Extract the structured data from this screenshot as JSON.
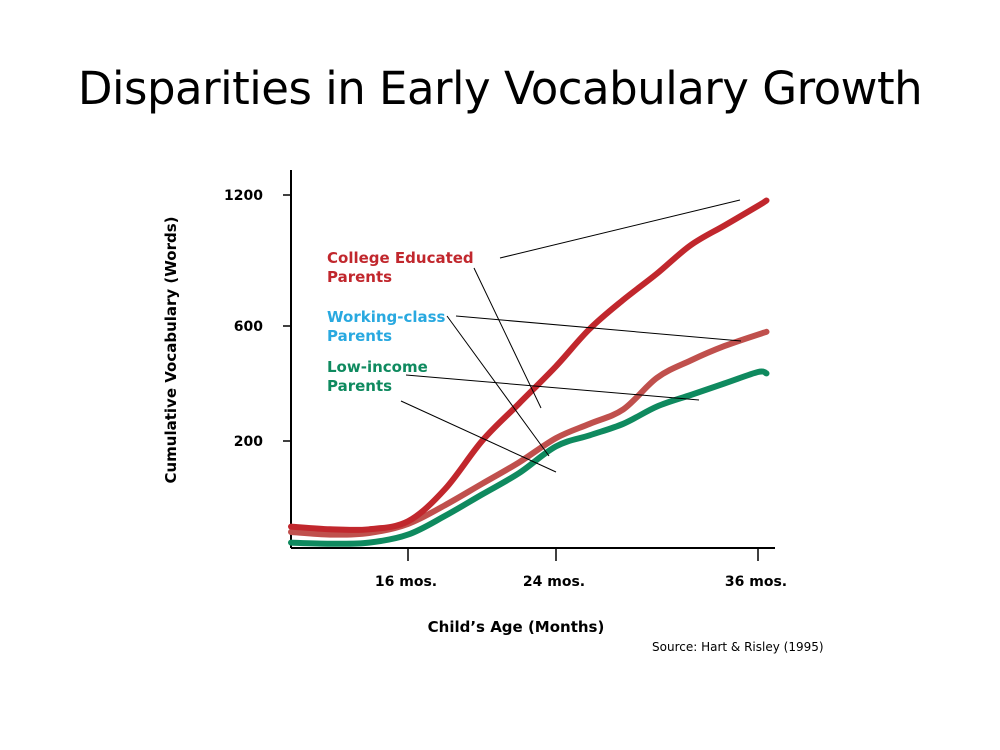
{
  "slide_title": "Disparities in Early Vocabulary Growth",
  "source_note": "Source: Hart & Risley (1995)",
  "chart_data": {
    "type": "line",
    "title": "Disparities in Early Vocabulary Growth",
    "xlabel": "Child’s Age (Months)",
    "ylabel": "Cumulative Vocabulary (Words)",
    "x_ticks": [
      {
        "value": 16,
        "label": "16 mos."
      },
      {
        "value": 24,
        "label": "24 mos."
      },
      {
        "value": 36,
        "label": "36 mos."
      }
    ],
    "y_ticks": [
      {
        "value": 200,
        "label": "200"
      },
      {
        "value": 600,
        "label": "600"
      },
      {
        "value": 1200,
        "label": "1200"
      }
    ],
    "xlim": [
      10,
      37
    ],
    "ylim": [
      0,
      1250
    ],
    "grid": false,
    "series": [
      {
        "name": "College Educated Parents",
        "label_lines": [
          "College Educated",
          "Parents"
        ],
        "color": "#c1272d",
        "points": [
          [
            10,
            40
          ],
          [
            12,
            35
          ],
          [
            14,
            35
          ],
          [
            16,
            50
          ],
          [
            18,
            110
          ],
          [
            20,
            200
          ],
          [
            22,
            330
          ],
          [
            24,
            460
          ],
          [
            26,
            590
          ],
          [
            28,
            720
          ],
          [
            30,
            840
          ],
          [
            32,
            970
          ],
          [
            34,
            1060
          ],
          [
            36,
            1150
          ],
          [
            36.5,
            1175
          ]
        ]
      },
      {
        "name": "Working-class Parents",
        "label_lines": [
          "Working-class",
          "Parents"
        ],
        "color": "#c0504d",
        "points": [
          [
            10,
            30
          ],
          [
            12,
            25
          ],
          [
            14,
            28
          ],
          [
            16,
            45
          ],
          [
            18,
            80
          ],
          [
            20,
            120
          ],
          [
            22,
            160
          ],
          [
            24,
            210
          ],
          [
            26,
            260
          ],
          [
            28,
            310
          ],
          [
            30,
            420
          ],
          [
            32,
            480
          ],
          [
            34,
            530
          ],
          [
            36.5,
            580
          ]
        ]
      },
      {
        "name": "Low-income Parents",
        "label_lines": [
          "Low-income",
          "Parents"
        ],
        "color": "#0f8a5f",
        "points": [
          [
            10,
            10
          ],
          [
            12,
            8
          ],
          [
            14,
            10
          ],
          [
            16,
            25
          ],
          [
            18,
            60
          ],
          [
            20,
            100
          ],
          [
            22,
            140
          ],
          [
            24,
            190
          ],
          [
            26,
            220
          ],
          [
            28,
            260
          ],
          [
            30,
            320
          ],
          [
            32,
            360
          ],
          [
            34,
            400
          ],
          [
            36,
            440
          ],
          [
            36.5,
            435
          ]
        ]
      }
    ]
  }
}
